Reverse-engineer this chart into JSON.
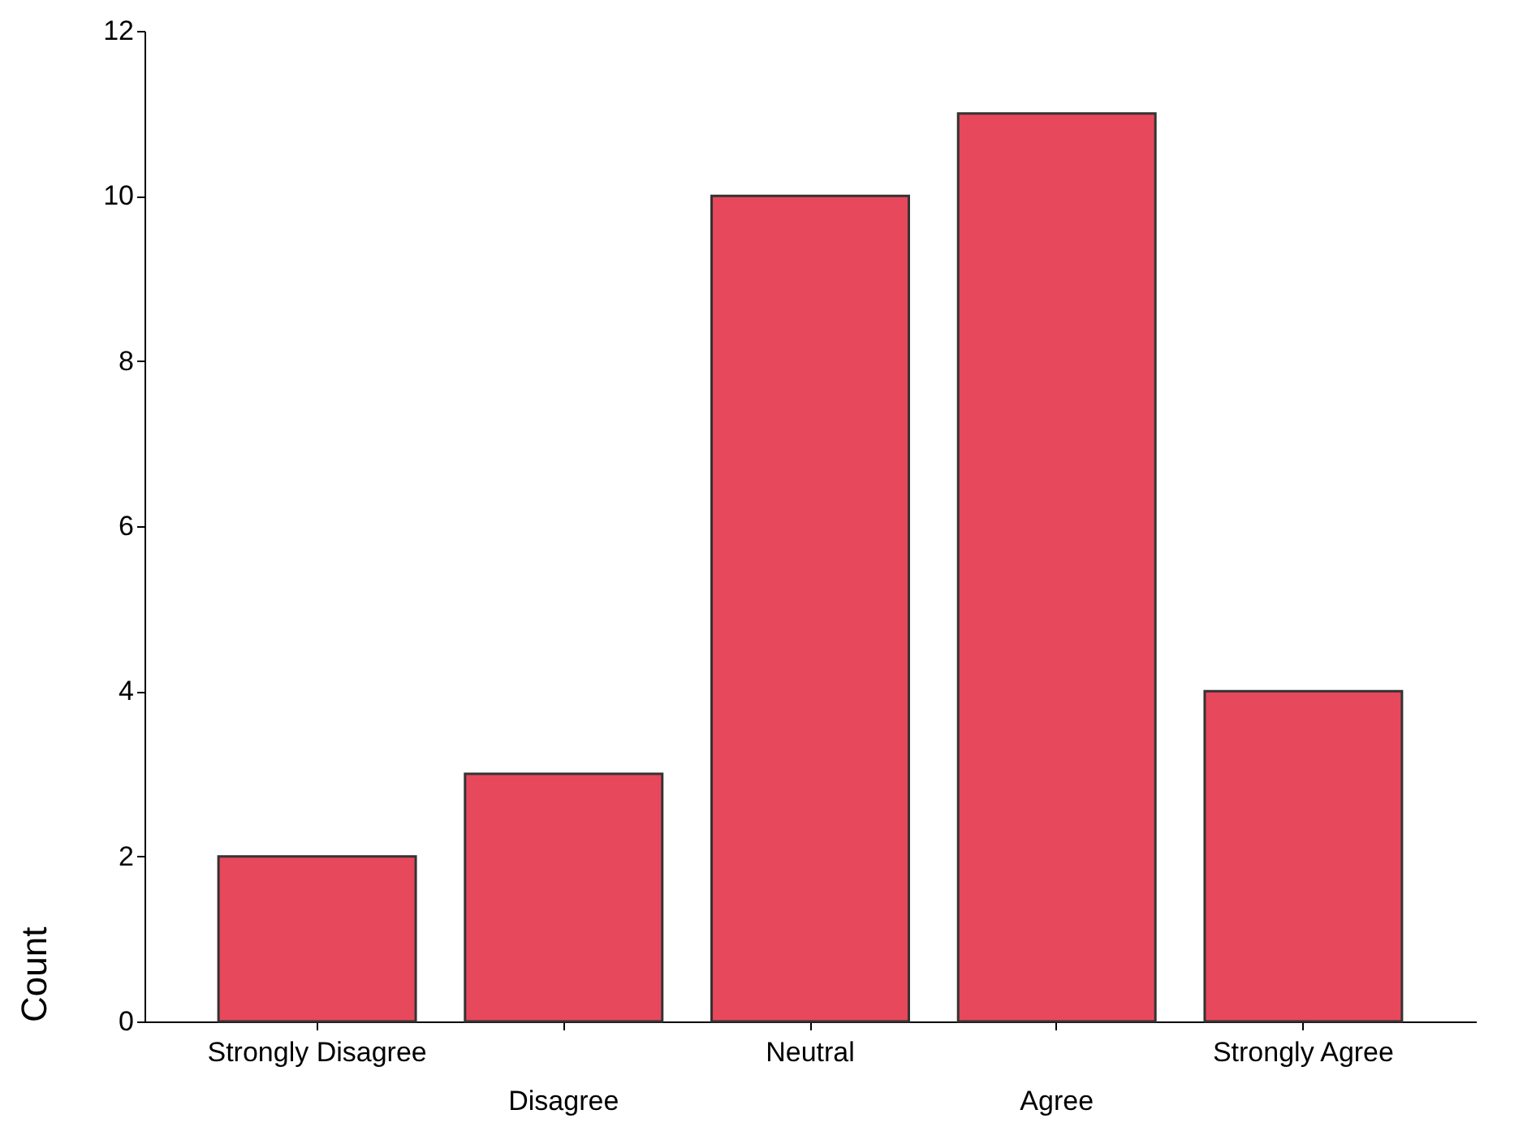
{
  "chart_data": {
    "type": "bar",
    "ylabel": "Count",
    "categories": [
      "Strongly Disagree",
      "Disagree",
      "Neutral",
      "Agree",
      "Strongly Agree"
    ],
    "values": [
      2,
      3,
      10,
      11,
      4
    ],
    "color": "#e8485c",
    "ylim": [
      0,
      12
    ],
    "yticks": [
      0,
      2,
      4,
      6,
      8,
      10,
      12
    ],
    "grid": false,
    "legend": false
  }
}
